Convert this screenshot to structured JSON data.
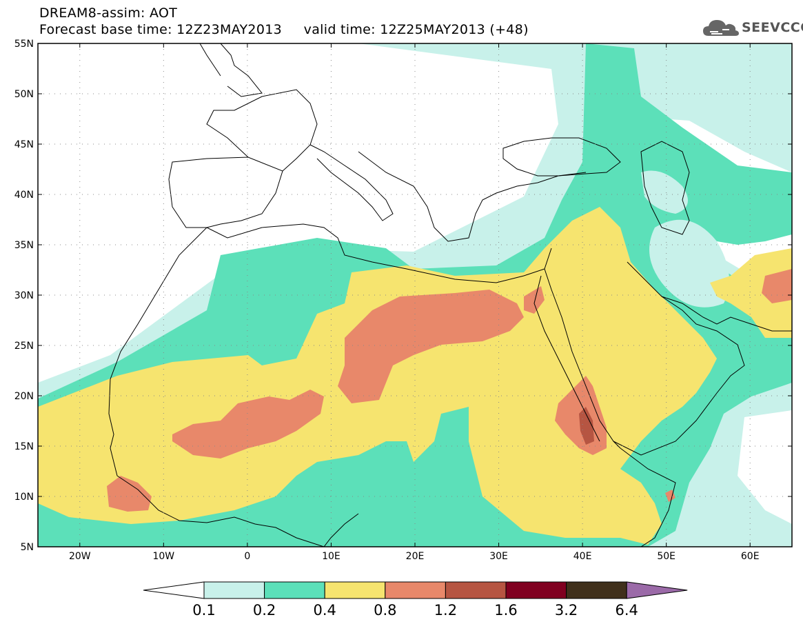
{
  "title_line1": "DREAM8-assim: AOT",
  "title_line2": "Forecast base time: 12Z23MAY2013     valid time: 12Z25MAY2013 (+48)",
  "brand": {
    "name": "SEEVCCC",
    "logo": "cloud-icon"
  },
  "map": {
    "lon_range": [
      -25,
      65
    ],
    "lat_range": [
      5,
      55
    ],
    "lon_ticks": [
      {
        "value": -20,
        "label": "20W"
      },
      {
        "value": -10,
        "label": "10W"
      },
      {
        "value": 0,
        "label": "0"
      },
      {
        "value": 10,
        "label": "10E"
      },
      {
        "value": 20,
        "label": "20E"
      },
      {
        "value": 30,
        "label": "30E"
      },
      {
        "value": 40,
        "label": "40E"
      },
      {
        "value": 50,
        "label": "50E"
      },
      {
        "value": 60,
        "label": "60E"
      }
    ],
    "lat_ticks": [
      {
        "value": 5,
        "label": "5N"
      },
      {
        "value": 10,
        "label": "10N"
      },
      {
        "value": 15,
        "label": "15N"
      },
      {
        "value": 20,
        "label": "20N"
      },
      {
        "value": 25,
        "label": "25N"
      },
      {
        "value": 30,
        "label": "30N"
      },
      {
        "value": 35,
        "label": "35N"
      },
      {
        "value": 40,
        "label": "40N"
      },
      {
        "value": 45,
        "label": "45N"
      },
      {
        "value": 50,
        "label": "50N"
      },
      {
        "value": 55,
        "label": "55N"
      }
    ],
    "grid": "dotted"
  },
  "colorbar": {
    "labels": [
      "0.1",
      "0.2",
      "0.4",
      "0.8",
      "1.2",
      "1.6",
      "3.2",
      "6.4"
    ],
    "colors": [
      "#ffffff",
      "#c8f1ea",
      "#5ce0b9",
      "#f6e46f",
      "#e8886a",
      "#b65542",
      "#800020",
      "#40301b",
      "#9b6aa8"
    ]
  }
}
